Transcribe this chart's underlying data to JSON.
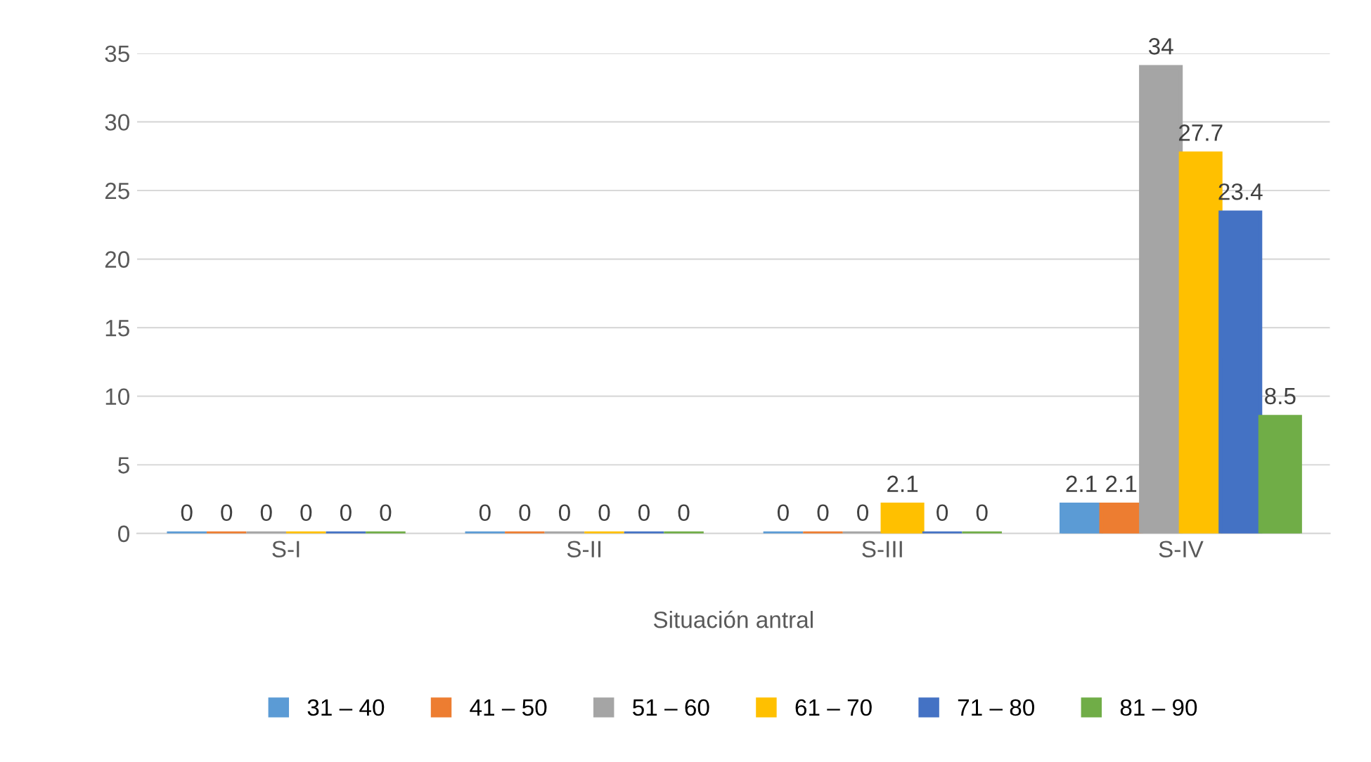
{
  "chart_data": {
    "type": "bar",
    "xlabel": "Situación antral",
    "categories": [
      "S-I",
      "S-II",
      "S-III",
      "S-IV"
    ],
    "series": [
      {
        "name": "31 – 40",
        "color": "#5b9bd5",
        "values": [
          0,
          0,
          0,
          2.1
        ]
      },
      {
        "name": "41 – 50",
        "color": "#ed7d31",
        "values": [
          0,
          0,
          0,
          2.1
        ]
      },
      {
        "name": "51 – 60",
        "color": "#a5a5a5",
        "values": [
          0,
          0,
          0,
          34
        ]
      },
      {
        "name": "61 – 70",
        "color": "#ffc000",
        "values": [
          0,
          0,
          2.1,
          27.7
        ]
      },
      {
        "name": "71 – 80",
        "color": "#4472c4",
        "values": [
          0,
          0,
          0,
          23.4
        ]
      },
      {
        "name": "81 – 90",
        "color": "#70ad47",
        "values": [
          0,
          0,
          0,
          8.5
        ]
      }
    ],
    "ylim": [
      0,
      35
    ],
    "yticks": [
      0,
      5,
      10,
      15,
      20,
      25,
      30,
      35
    ],
    "grid": "y",
    "legend": "bottom",
    "data_labels": true
  }
}
